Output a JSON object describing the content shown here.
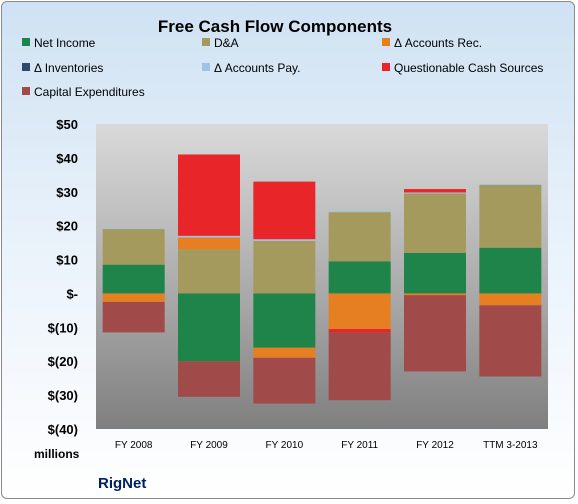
{
  "chart_data": {
    "type": "bar",
    "stacked": true,
    "title": "Free Cash Flow Components",
    "unit_label": "millions",
    "brand": "RigNet",
    "categories": [
      "FY 2008",
      "FY 2009",
      "FY 2010",
      "FY 2011",
      "FY 2012",
      "TTM 3-2013"
    ],
    "ylim": [
      -40,
      50
    ],
    "yticks": [
      {
        "value": 50,
        "label": "$50"
      },
      {
        "value": 40,
        "label": "$40"
      },
      {
        "value": 30,
        "label": "$30"
      },
      {
        "value": 20,
        "label": "$20"
      },
      {
        "value": 10,
        "label": "$10"
      },
      {
        "value": 0,
        "label": "$-"
      },
      {
        "value": -10,
        "label": "$(10)"
      },
      {
        "value": -20,
        "label": "$(20)"
      },
      {
        "value": -30,
        "label": "$(30)"
      },
      {
        "value": -40,
        "label": "$(40)"
      }
    ],
    "series": [
      {
        "name": "Net Income",
        "color": "#1e8449",
        "values": [
          8.5,
          -20,
          -16,
          9.5,
          12,
          13.5
        ]
      },
      {
        "name": "D&A",
        "color": "#a49a5d",
        "values": [
          10.5,
          13,
          15.5,
          14.5,
          17.5,
          18.5
        ]
      },
      {
        "name": "Δ Accounts Rec.",
        "color": "#e67e22",
        "values": [
          -2.5,
          3.5,
          -3,
          -10.5,
          -0.5,
          -3.5
        ]
      },
      {
        "name": "Δ Inventories",
        "color": "#2e4a6b",
        "values": [
          0,
          0,
          0,
          0,
          0,
          0
        ]
      },
      {
        "name": "Δ Accounts Pay.",
        "color": "#9dc3e6",
        "values": [
          0.2,
          0.5,
          0.5,
          0.3,
          0.3,
          0.3
        ]
      },
      {
        "name": "Questionable Cash Sources",
        "color": "#e8262a",
        "values": [
          0,
          24,
          17,
          -1,
          1,
          0
        ]
      },
      {
        "name": "Capital Expenditures",
        "color": "#a04a4a",
        "values": [
          -9,
          -10.5,
          -13.5,
          -20,
          -22.5,
          -21
        ]
      }
    ],
    "grid": false,
    "legend_position": "top"
  }
}
